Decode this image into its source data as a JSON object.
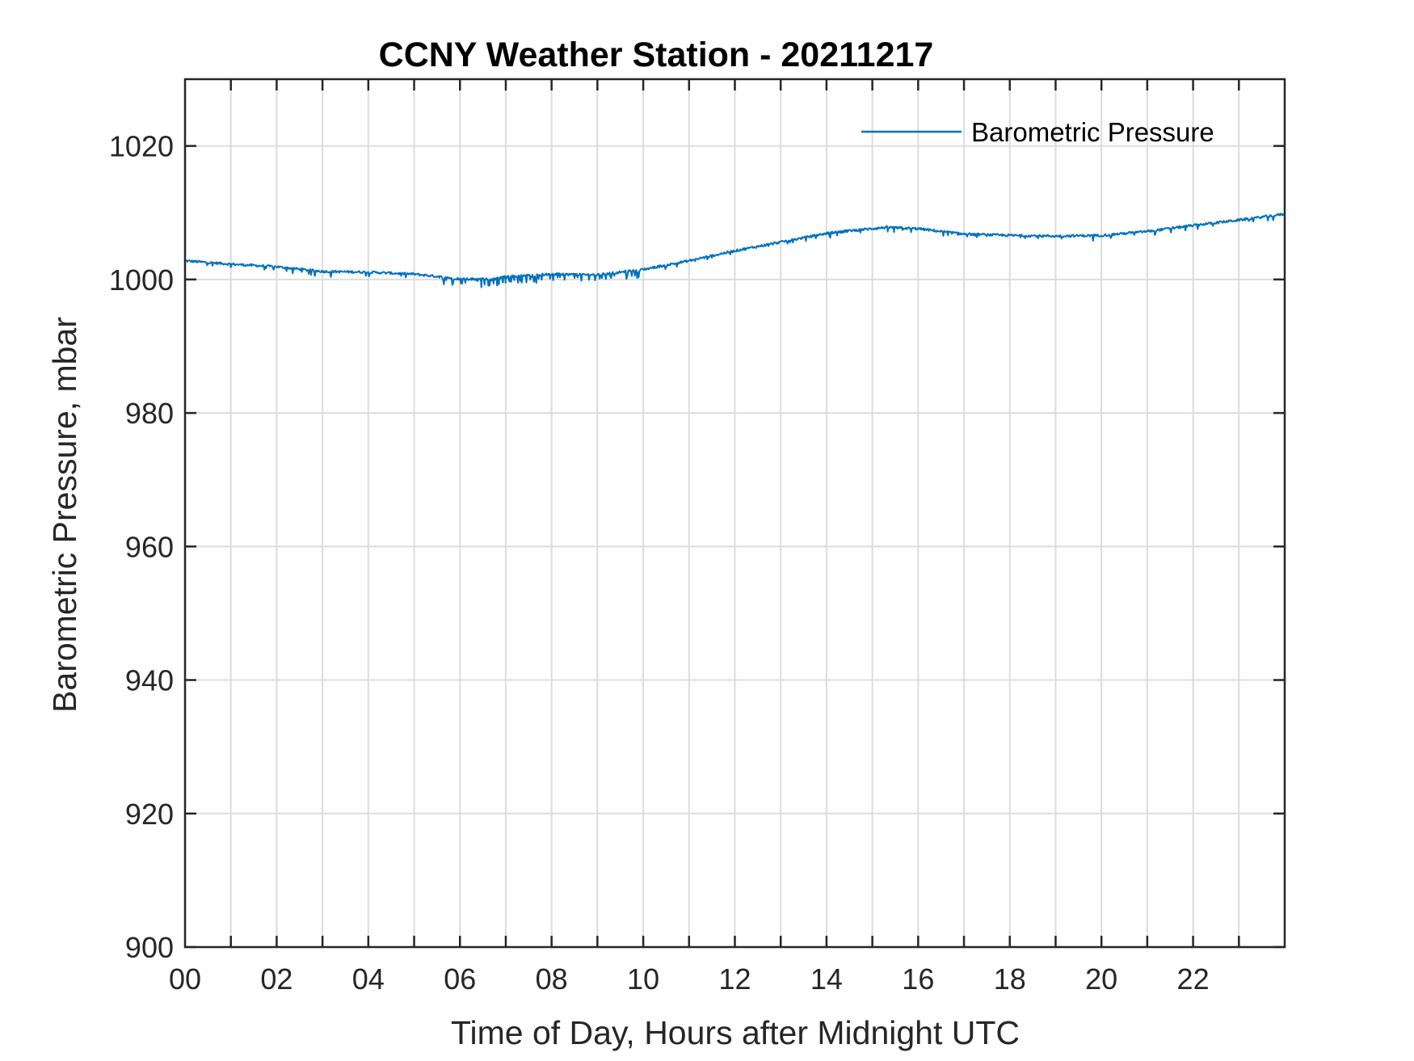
{
  "chart_data": {
    "type": "line",
    "title": "CCNY Weather Station - 20211217",
    "xlabel": "Time of Day, Hours after Midnight UTC",
    "ylabel": "Barometric Pressure, mbar",
    "xlim": [
      0,
      24
    ],
    "ylim": [
      900,
      1030
    ],
    "xticks": [
      0,
      2,
      4,
      6,
      8,
      10,
      12,
      14,
      16,
      18,
      20,
      22
    ],
    "xtick_labels": [
      "00",
      "02",
      "04",
      "06",
      "08",
      "10",
      "12",
      "14",
      "16",
      "18",
      "20",
      "22"
    ],
    "yticks": [
      900,
      920,
      940,
      960,
      980,
      1000,
      1020
    ],
    "ytick_labels": [
      "900",
      "920",
      "940",
      "960",
      "980",
      "1000",
      "1020"
    ],
    "xgrid_hours": [
      1,
      2,
      3,
      4,
      5,
      6,
      7,
      8,
      9,
      10,
      11,
      12,
      13,
      14,
      15,
      16,
      17,
      18,
      19,
      20,
      21,
      22,
      23
    ],
    "grid": true,
    "legend_position": "top-right",
    "series": [
      {
        "name": "Barometric Pressure",
        "color": "#0072bd",
        "x": [
          0,
          1,
          2,
          3,
          4,
          5,
          6,
          6.7,
          7,
          8,
          9,
          10,
          11,
          12,
          13,
          14,
          14.5,
          15.3,
          16,
          17,
          18,
          19,
          20,
          21,
          22,
          23,
          24
        ],
        "y": [
          1002.8,
          1002.3,
          1001.9,
          1001.2,
          1001.1,
          1000.8,
          1000.1,
          1000.0,
          1000.4,
          1000.8,
          1000.7,
          1001.5,
          1002.8,
          1004.3,
          1005.6,
          1006.9,
          1007.3,
          1007.8,
          1007.6,
          1006.8,
          1006.6,
          1006.5,
          1006.6,
          1007.2,
          1008.1,
          1008.9,
          1009.8
        ]
      }
    ]
  }
}
